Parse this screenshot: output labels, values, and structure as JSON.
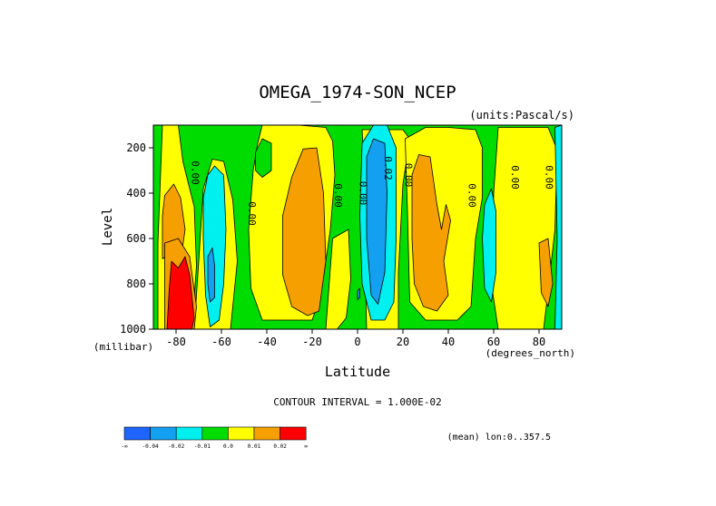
{
  "chart_data": {
    "type": "heatmap",
    "title": "OMEGA_1974-SON_NCEP",
    "units_label": "(units:Pascal/s)",
    "ylabel": "Level",
    "yunits": "(millibar)",
    "xlabel": "Latitude",
    "xunits": "(degrees_north)",
    "xlim": [
      -90,
      90
    ],
    "ylim": [
      1000,
      100
    ],
    "x_ticks": [
      {
        "value": -80,
        "label": "-80"
      },
      {
        "value": -60,
        "label": "-60"
      },
      {
        "value": -40,
        "label": "-40"
      },
      {
        "value": -20,
        "label": "-20"
      },
      {
        "value": 0,
        "label": "0"
      },
      {
        "value": 20,
        "label": "20"
      },
      {
        "value": 40,
        "label": "40"
      },
      {
        "value": 60,
        "label": "60"
      },
      {
        "value": 80,
        "label": "80"
      }
    ],
    "y_ticks": [
      {
        "value": 1000,
        "label": "1000"
      },
      {
        "value": 800,
        "label": "800"
      },
      {
        "value": 600,
        "label": "600"
      },
      {
        "value": 400,
        "label": "400"
      },
      {
        "value": 200,
        "label": "200"
      }
    ],
    "contour_interval_text": "CONTOUR INTERVAL = 1.000E-02",
    "mean_text": "(mean) lon:0..357.5",
    "contour_labels": [
      {
        "text": "0.00",
        "lat": -73,
        "p": 310
      },
      {
        "text": "0.00",
        "lat": -48,
        "p": 490
      },
      {
        "text": "0.00",
        "lat": -10,
        "p": 410
      },
      {
        "text": "0.00",
        "lat": 1,
        "p": 400
      },
      {
        "text": "0.02",
        "lat": 12,
        "p": 290
      },
      {
        "text": "0.00",
        "lat": 21,
        "p": 320
      },
      {
        "text": "0.00",
        "lat": 49,
        "p": 410
      },
      {
        "text": "0.00",
        "lat": 68,
        "p": 330
      },
      {
        "text": "0.00",
        "lat": 83,
        "p": 330
      }
    ],
    "legend": {
      "bins": [
        {
          "color": "#1e64ff",
          "label": "-0.04"
        },
        {
          "color": "#14a0f0",
          "label": "-0.02"
        },
        {
          "color": "#00f0f0",
          "label": "-0.01"
        },
        {
          "color": "#00dc00",
          "label": "0.0"
        },
        {
          "color": "#ffff00",
          "label": "0.01"
        },
        {
          "color": "#f5a000",
          "label": "0.02"
        },
        {
          "color": "#ff0000",
          "label": ""
        }
      ],
      "end_labels": [
        "-∞",
        "∞"
      ]
    },
    "fields": {
      "background_green": "#00dc00",
      "regions": [
        {
          "level": "yellow",
          "desc": "SH high-lat band",
          "pts": [
            [
              -88,
              620
            ],
            [
              -86,
              100
            ],
            [
              -79,
              100
            ],
            [
              -77,
              260
            ],
            [
              -72,
              460
            ],
            [
              -71,
              720
            ],
            [
              -73,
              1000
            ],
            [
              -88,
              1000
            ]
          ]
        },
        {
          "level": "yellow",
          "desc": "around SH cyan cell",
          "pts": [
            [
              -72,
              1000
            ],
            [
              -70,
              700
            ],
            [
              -68,
              380
            ],
            [
              -64,
              250
            ],
            [
              -59,
              260
            ],
            [
              -55,
              430
            ],
            [
              -53,
              700
            ],
            [
              -56,
              1000
            ]
          ]
        },
        {
          "level": "yellow",
          "desc": "SH subtropics",
          "pts": [
            [
              -42,
              100
            ],
            [
              -35,
              100
            ],
            [
              -26,
              100
            ],
            [
              -14,
              110
            ],
            [
              -11,
              170
            ],
            [
              -10,
              320
            ],
            [
              -12,
              560
            ],
            [
              -16,
              840
            ],
            [
              -20,
              960
            ],
            [
              -42,
              960
            ],
            [
              -47,
              820
            ],
            [
              -48,
              560
            ],
            [
              -46,
              300
            ],
            [
              -44,
              180
            ]
          ]
        },
        {
          "level": "yellow",
          "desc": "near-equator strip",
          "pts": [
            [
              -11,
              600
            ],
            [
              -4,
              560
            ],
            [
              -3,
              780
            ],
            [
              -5,
              950
            ],
            [
              -9,
              1000
            ],
            [
              -14,
              1000
            ]
          ]
        },
        {
          "level": "yellow",
          "desc": "around ITCZ",
          "pts": [
            [
              2,
              120
            ],
            [
              20,
              120
            ],
            [
              23,
              160
            ],
            [
              20,
              360
            ],
            [
              18,
              750
            ],
            [
              18,
              1000
            ],
            [
              4,
              1000
            ],
            [
              3,
              600
            ],
            [
              3,
              300
            ]
          ]
        },
        {
          "level": "yellow",
          "desc": "NH subtropics",
          "pts": [
            [
              21,
              160
            ],
            [
              30,
              110
            ],
            [
              40,
              110
            ],
            [
              52,
              120
            ],
            [
              55,
              200
            ],
            [
              55,
              420
            ],
            [
              52,
              600
            ],
            [
              50,
              900
            ],
            [
              44,
              960
            ],
            [
              30,
              960
            ],
            [
              23,
              880
            ],
            [
              22,
              480
            ]
          ]
        },
        {
          "level": "yellow",
          "desc": "NH polar",
          "pts": [
            [
              62,
              110
            ],
            [
              72,
              110
            ],
            [
              84,
              110
            ],
            [
              88,
              210
            ],
            [
              87,
              560
            ],
            [
              84,
              830
            ],
            [
              82,
              1000
            ],
            [
              62,
              1000
            ],
            [
              59,
              800
            ],
            [
              60,
              400
            ]
          ]
        },
        {
          "level": "orange",
          "desc": "SH high-lat orange",
          "pts": [
            [
              -86,
              500
            ],
            [
              -85,
              410
            ],
            [
              -81,
              360
            ],
            [
              -78,
              420
            ],
            [
              -76,
              560
            ],
            [
              -78,
              700
            ],
            [
              -82,
              660
            ],
            [
              -86,
              690
            ]
          ]
        },
        {
          "level": "orange",
          "desc": "SH near-surface orange",
          "pts": [
            [
              -85,
              620
            ],
            [
              -79,
              600
            ],
            [
              -74,
              680
            ],
            [
              -71,
              900
            ],
            [
              -72,
              1000
            ],
            [
              -85,
              1000
            ]
          ]
        },
        {
          "level": "orange",
          "desc": "SH subtropical orange",
          "pts": [
            [
              -29,
              330
            ],
            [
              -24,
              205
            ],
            [
              -18,
              200
            ],
            [
              -15,
              400
            ],
            [
              -14,
              700
            ],
            [
              -17,
              920
            ],
            [
              -22,
              940
            ],
            [
              -29,
              900
            ],
            [
              -33,
              760
            ],
            [
              -33,
              500
            ]
          ]
        },
        {
          "level": "orange",
          "desc": "NH subtropical orange",
          "pts": [
            [
              24,
              320
            ],
            [
              27,
              230
            ],
            [
              32,
              240
            ],
            [
              35,
              450
            ],
            [
              37,
              560
            ],
            [
              39,
              450
            ],
            [
              41,
              520
            ],
            [
              38,
              700
            ],
            [
              40,
              850
            ],
            [
              35,
              920
            ],
            [
              29,
              900
            ],
            [
              25,
              800
            ],
            [
              24,
              600
            ]
          ]
        },
        {
          "level": "orange",
          "desc": "NH polar orange",
          "pts": [
            [
              80,
              620
            ],
            [
              84,
              600
            ],
            [
              86,
              800
            ],
            [
              84,
              900
            ],
            [
              81,
              840
            ]
          ]
        },
        {
          "level": "green",
          "desc": "SH upper green blob",
          "pts": [
            [
              -45,
              220
            ],
            [
              -42,
              160
            ],
            [
              -38,
              180
            ],
            [
              -38,
              300
            ],
            [
              -42,
              330
            ],
            [
              -45,
              300
            ]
          ]
        },
        {
          "level": "cyan",
          "desc": "SH cyan cell",
          "pts": [
            [
              -66,
              320
            ],
            [
              -63,
              280
            ],
            [
              -59,
              320
            ],
            [
              -58,
              560
            ],
            [
              -59,
              800
            ],
            [
              -61,
              960
            ],
            [
              -65,
              990
            ],
            [
              -67,
              850
            ],
            [
              -68,
              600
            ],
            [
              -68,
              420
            ]
          ]
        },
        {
          "level": "blue",
          "desc": "SH blue core",
          "pts": [
            [
              -66,
              680
            ],
            [
              -64,
              640
            ],
            [
              -63,
              720
            ],
            [
              -63,
              860
            ],
            [
              -65,
              880
            ],
            [
              -66,
              800
            ]
          ]
        },
        {
          "level": "cyan",
          "desc": "ITCZ cyan",
          "pts": [
            [
              2,
              180
            ],
            [
              7,
              100
            ],
            [
              13,
              100
            ],
            [
              17,
              200
            ],
            [
              17,
              600
            ],
            [
              16,
              880
            ],
            [
              12,
              960
            ],
            [
              6,
              960
            ],
            [
              2,
              800
            ],
            [
              1,
              500
            ]
          ]
        },
        {
          "level": "blue",
          "desc": "ITCZ blue core",
          "pts": [
            [
              4,
              240
            ],
            [
              7,
              160
            ],
            [
              12,
              180
            ],
            [
              13,
              400
            ],
            [
              12,
              750
            ],
            [
              9,
              890
            ],
            [
              6,
              850
            ],
            [
              4,
              600
            ]
          ]
        },
        {
          "level": "blue",
          "desc": "small blue dot",
          "pts": [
            [
              0,
              830
            ],
            [
              1,
              820
            ],
            [
              1,
              860
            ],
            [
              0,
              870
            ]
          ]
        },
        {
          "level": "cyan",
          "desc": "NH subpolar cyan",
          "pts": [
            [
              56,
              450
            ],
            [
              59,
              380
            ],
            [
              61,
              480
            ],
            [
              61,
              750
            ],
            [
              59,
              880
            ],
            [
              56,
              820
            ],
            [
              55,
              600
            ]
          ]
        },
        {
          "level": "cyan",
          "desc": "NH polar cyan strip",
          "pts": [
            [
              87,
              110
            ],
            [
              90,
              100
            ],
            [
              90,
              1000
            ],
            [
              87,
              1000
            ],
            [
              88,
              600
            ]
          ]
        },
        {
          "level": "red",
          "desc": "SH surface red",
          "pts": [
            [
              -82,
              700
            ],
            [
              -79,
              730
            ],
            [
              -76,
              680
            ],
            [
              -74,
              760
            ],
            [
              -72,
              950
            ],
            [
              -73,
              1000
            ],
            [
              -84,
              1000
            ],
            [
              -83,
              820
            ]
          ]
        }
      ]
    }
  }
}
